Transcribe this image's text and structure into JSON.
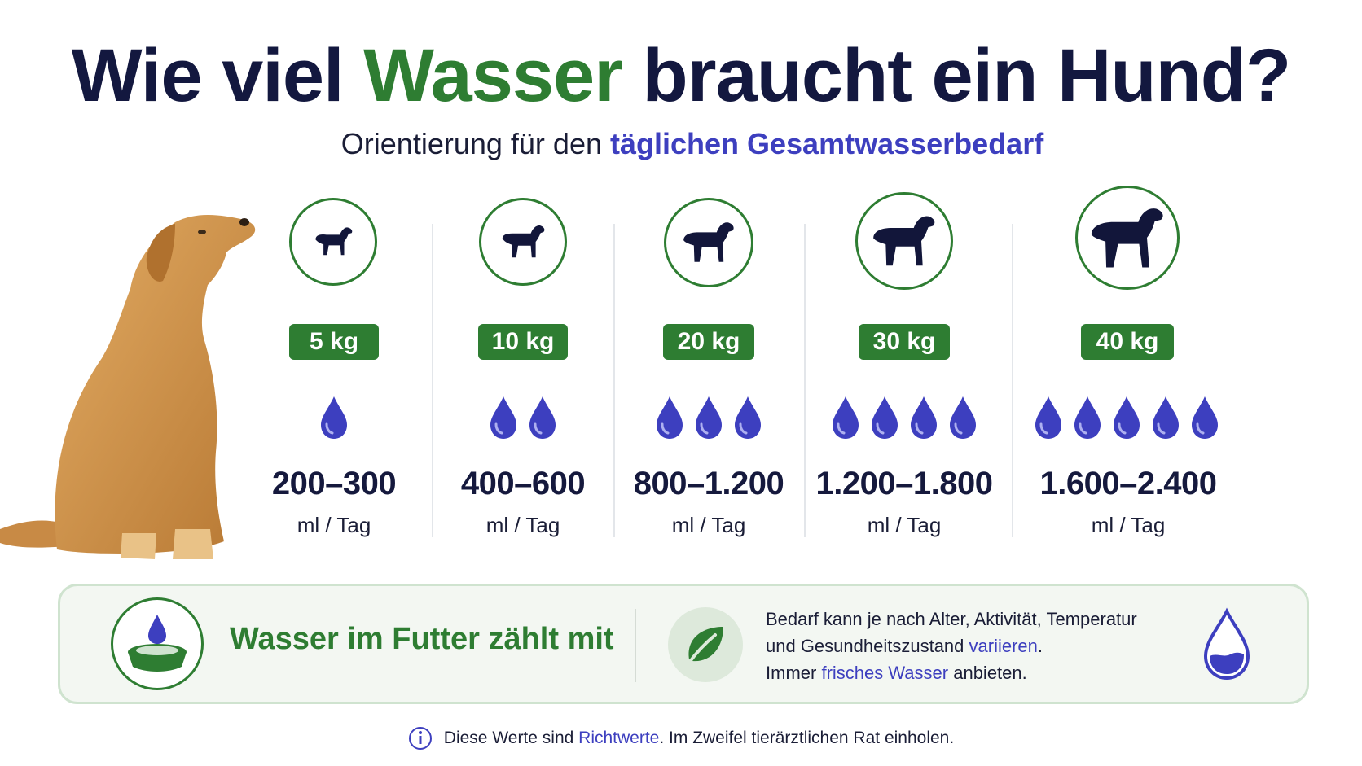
{
  "title": {
    "part1": "Wie viel ",
    "highlight": "Wasser",
    "part2": " braucht ein Hund?"
  },
  "subtitle": {
    "part1": "Orientierung für den ",
    "highlight": "täglichen Gesamtwasserbedarf"
  },
  "columns": [
    {
      "kg": "5 kg",
      "drops": 1,
      "value": "200–300",
      "unit": "ml / Tag"
    },
    {
      "kg": "10 kg",
      "drops": 2,
      "value": "400–600",
      "unit": "ml / Tag"
    },
    {
      "kg": "20 kg",
      "drops": 3,
      "value": "800–1.200",
      "unit": "ml / Tag"
    },
    {
      "kg": "30 kg",
      "drops": 4,
      "value": "1.200–1.800",
      "unit": "ml / Tag"
    },
    {
      "kg": "40 kg",
      "drops": 5,
      "value": "1.600–2.400",
      "unit": "ml / Tag"
    }
  ],
  "info": {
    "food": "Wasser im Futter zählt mit",
    "line1": "Bedarf kann je nach Alter, Aktivität, Temperatur",
    "line2_a": "und Gesundheitszustand ",
    "line2_b": "variieren",
    "line2_c": ".",
    "line3_a": "Immer ",
    "line3_b": "frisches Wasser",
    "line3_c": " anbieten."
  },
  "footer": {
    "a": "Diese Werte sind ",
    "b": "Richtwerte",
    "c": ". Im Zweifel tierärztlichen Rat einholen."
  },
  "colors": {
    "green": "#2e7d32",
    "blue": "#3d3fbf",
    "navy": "#13183f"
  }
}
